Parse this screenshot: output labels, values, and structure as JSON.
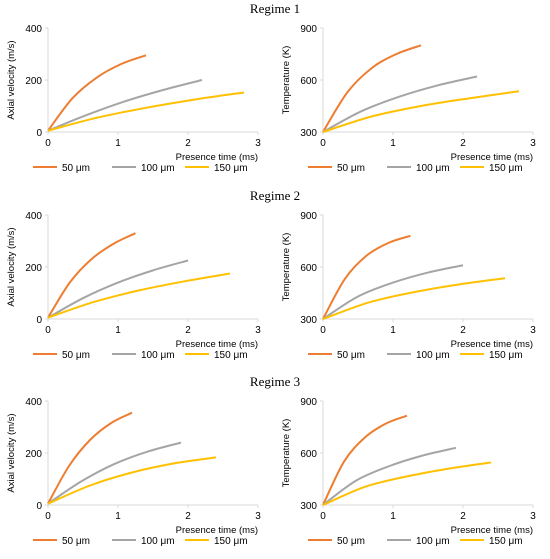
{
  "regimes": [
    {
      "title": "Regime 1"
    },
    {
      "title": "Regime 2"
    },
    {
      "title": "Regime 3"
    }
  ],
  "colors": {
    "s50": "#ED7D31",
    "s100": "#A5A5A5",
    "s150": "#FFC000",
    "axis": "#D9D9D9"
  },
  "chart_data": [
    {
      "type": "line",
      "regime": "Regime 1",
      "xlabel": "Presence time (ms)",
      "ylabel": "Axial velocity (m/s)",
      "xlim": [
        0,
        3
      ],
      "ylim": [
        0,
        400
      ],
      "xticks": [
        0,
        1,
        2,
        3
      ],
      "yticks": [
        0,
        200,
        400
      ],
      "legend": "bottom",
      "series": [
        {
          "name": "50 μm",
          "x": [
            0,
            0.35,
            0.7,
            1.05,
            1.4
          ],
          "y": [
            5,
            130,
            210,
            262,
            295
          ]
        },
        {
          "name": "100 μm",
          "x": [
            0,
            0.55,
            1.1,
            1.65,
            2.2
          ],
          "y": [
            5,
            65,
            118,
            162,
            200
          ]
        },
        {
          "name": "150 μm",
          "x": [
            0,
            0.7,
            1.4,
            2.1,
            2.8
          ],
          "y": [
            5,
            55,
            93,
            125,
            152
          ]
        }
      ]
    },
    {
      "type": "line",
      "regime": "Regime 1",
      "xlabel": "Presence time (ms)",
      "ylabel": "Temperature (K)",
      "xlim": [
        0,
        3
      ],
      "ylim": [
        300,
        900
      ],
      "xticks": [
        0,
        1,
        2,
        3
      ],
      "yticks": [
        300,
        600,
        900
      ],
      "legend": "bottom",
      "series": [
        {
          "name": "50 μm",
          "x": [
            0,
            0.35,
            0.7,
            1.05,
            1.4
          ],
          "y": [
            300,
            530,
            670,
            750,
            800
          ]
        },
        {
          "name": "100 μm",
          "x": [
            0,
            0.55,
            1.1,
            1.65,
            2.2
          ],
          "y": [
            300,
            420,
            505,
            570,
            620
          ]
        },
        {
          "name": "150 μm",
          "x": [
            0,
            0.7,
            1.4,
            2.1,
            2.8
          ],
          "y": [
            300,
            390,
            450,
            495,
            535
          ]
        }
      ]
    },
    {
      "type": "line",
      "regime": "Regime 2",
      "xlabel": "Presence time (ms)",
      "ylabel": "Axial velocity (m/s)",
      "xlim": [
        0,
        3
      ],
      "ylim": [
        0,
        400
      ],
      "xticks": [
        0,
        1,
        2,
        3
      ],
      "yticks": [
        0,
        200,
        400
      ],
      "legend": "bottom",
      "series": [
        {
          "name": "50 μm",
          "x": [
            0,
            0.31,
            0.62,
            0.94,
            1.25
          ],
          "y": [
            5,
            140,
            230,
            290,
            330
          ]
        },
        {
          "name": "100 μm",
          "x": [
            0,
            0.5,
            1.0,
            1.5,
            2.0
          ],
          "y": [
            5,
            80,
            140,
            187,
            225
          ]
        },
        {
          "name": "150 μm",
          "x": [
            0,
            0.65,
            1.3,
            1.95,
            2.6
          ],
          "y": [
            5,
            65,
            110,
            145,
            175
          ]
        }
      ]
    },
    {
      "type": "line",
      "regime": "Regime 2",
      "xlabel": "Presence time (ms)",
      "ylabel": "Temperature (K)",
      "xlim": [
        0,
        3
      ],
      "ylim": [
        300,
        900
      ],
      "xticks": [
        0,
        1,
        2,
        3
      ],
      "yticks": [
        300,
        600,
        900
      ],
      "legend": "bottom",
      "series": [
        {
          "name": "50 μm",
          "x": [
            0,
            0.31,
            0.62,
            0.94,
            1.25
          ],
          "y": [
            300,
            530,
            665,
            740,
            780
          ]
        },
        {
          "name": "100 μm",
          "x": [
            0,
            0.5,
            1.0,
            1.5,
            2.0
          ],
          "y": [
            300,
            430,
            510,
            568,
            610
          ]
        },
        {
          "name": "150 μm",
          "x": [
            0,
            0.65,
            1.3,
            1.95,
            2.6
          ],
          "y": [
            300,
            395,
            455,
            500,
            535
          ]
        }
      ]
    },
    {
      "type": "line",
      "regime": "Regime 3",
      "xlabel": "Presence time (ms)",
      "ylabel": "Axial velocity (m/s)",
      "xlim": [
        0,
        3
      ],
      "ylim": [
        0,
        400
      ],
      "xticks": [
        0,
        1,
        2,
        3
      ],
      "yticks": [
        0,
        200,
        400
      ],
      "legend": "bottom",
      "series": [
        {
          "name": "50 μm",
          "x": [
            0,
            0.3,
            0.6,
            0.9,
            1.2
          ],
          "y": [
            5,
            150,
            250,
            315,
            355
          ]
        },
        {
          "name": "100 μm",
          "x": [
            0,
            0.47,
            0.95,
            1.42,
            1.9
          ],
          "y": [
            5,
            90,
            158,
            205,
            240
          ]
        },
        {
          "name": "150 μm",
          "x": [
            0,
            0.6,
            1.2,
            1.8,
            2.4
          ],
          "y": [
            5,
            75,
            125,
            160,
            183
          ]
        }
      ]
    },
    {
      "type": "line",
      "regime": "Regime 3",
      "xlabel": "Presence time (ms)",
      "ylabel": "Temperature (K)",
      "xlim": [
        0,
        3
      ],
      "ylim": [
        300,
        900
      ],
      "xticks": [
        0,
        1,
        2,
        3
      ],
      "yticks": [
        300,
        600,
        900
      ],
      "legend": "bottom",
      "series": [
        {
          "name": "50 μm",
          "x": [
            0,
            0.3,
            0.6,
            0.9,
            1.2
          ],
          "y": [
            300,
            550,
            690,
            770,
            815
          ]
        },
        {
          "name": "100 μm",
          "x": [
            0,
            0.47,
            0.95,
            1.42,
            1.9
          ],
          "y": [
            300,
            440,
            525,
            585,
            630
          ]
        },
        {
          "name": "150 μm",
          "x": [
            0,
            0.6,
            1.2,
            1.8,
            2.4
          ],
          "y": [
            300,
            405,
            465,
            510,
            545
          ]
        }
      ]
    }
  ]
}
